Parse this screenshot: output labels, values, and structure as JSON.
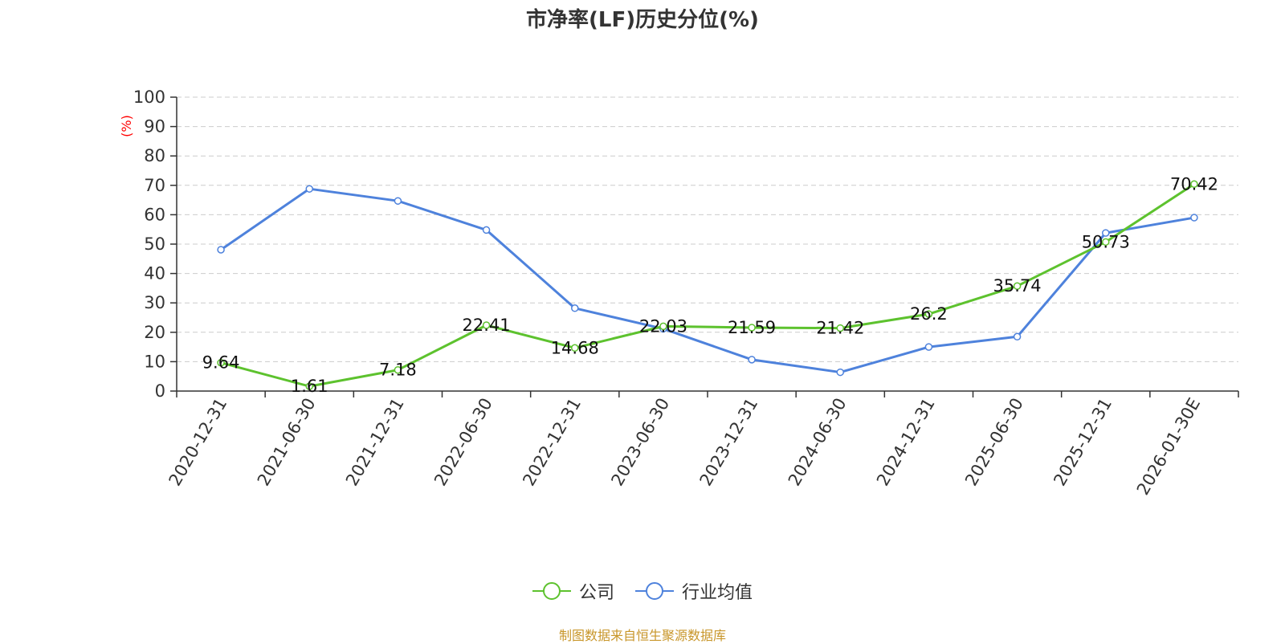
{
  "title": "市净率(LF)历史分位(%)",
  "source_note": "制图数据来自恒生聚源数据库",
  "colors": {
    "company": "#5dc22e",
    "industry": "#4e82dc",
    "grid": "#cccccc",
    "axis": "#333333",
    "unit": "#ff0000"
  },
  "chart_data": {
    "type": "line",
    "title": "市净率(LF)历史分位(%)",
    "ylabel": "(%)",
    "xlabel": "",
    "ylim": [
      0,
      100
    ],
    "yticks": [
      0,
      10,
      20,
      30,
      40,
      50,
      60,
      70,
      80,
      90,
      100
    ],
    "grid": true,
    "legend_position": "bottom",
    "categories": [
      "2020-12-31",
      "2021-06-30",
      "2021-12-31",
      "2022-06-30",
      "2022-12-31",
      "2023-06-30",
      "2023-12-31",
      "2024-06-30",
      "2024-12-31",
      "2025-06-30",
      "2025-12-31",
      "2026-01-30E"
    ],
    "series": [
      {
        "name": "公司",
        "values": [
          9.64,
          1.61,
          7.18,
          22.41,
          14.68,
          22.03,
          21.59,
          21.42,
          26.2,
          35.74,
          50.73,
          70.42
        ],
        "labels": [
          "9.64",
          "1.61",
          "7.18",
          "22.41",
          "14.68",
          "22.03",
          "21.59",
          "21.42",
          "26.2",
          "35.74",
          "50.73",
          "70.42"
        ]
      },
      {
        "name": "行业均值",
        "values": [
          48.1,
          68.8,
          64.7,
          54.8,
          28.2,
          21.2,
          10.7,
          6.4,
          15.0,
          18.5,
          53.8,
          59.0
        ]
      }
    ]
  }
}
